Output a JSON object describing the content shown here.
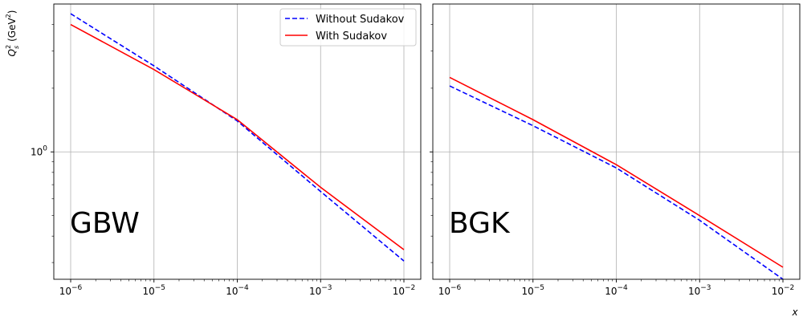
{
  "chart_data": [
    {
      "type": "line",
      "panel_label": "GBW",
      "xscale": "log",
      "yscale": "log",
      "xlim": [
        1e-06,
        0.01
      ],
      "ylim": [
        0.25,
        5.0
      ],
      "grid": true,
      "legend": "top-right",
      "ylabel": "Q_s^2 (GeV^2)",
      "xlabel": "",
      "x_ticks": [
        1e-06,
        1e-05,
        0.0001,
        0.001,
        0.01
      ],
      "y_ticks": [
        1.0
      ],
      "series": [
        {
          "name": "Without Sudakov",
          "color": "#0000ff",
          "dash": true,
          "x": [
            1e-06,
            1e-05,
            0.0001,
            0.001,
            0.01
          ],
          "y": [
            4.5,
            2.55,
            1.4,
            0.65,
            0.305
          ]
        },
        {
          "name": "With Sudakov",
          "color": "#ff0000",
          "dash": false,
          "x": [
            1e-06,
            1e-05,
            0.0001,
            0.001,
            0.01
          ],
          "y": [
            4.0,
            2.45,
            1.42,
            0.68,
            0.345
          ]
        }
      ]
    },
    {
      "type": "line",
      "panel_label": "BGK",
      "xscale": "log",
      "yscale": "log",
      "xlim": [
        1e-06,
        0.01
      ],
      "ylim": [
        0.25,
        5.0
      ],
      "grid": true,
      "legend": "none",
      "ylabel": "",
      "xlabel": "x",
      "x_ticks": [
        1e-06,
        1e-05,
        0.0001,
        0.001,
        0.01
      ],
      "y_ticks": [
        1.0
      ],
      "series": [
        {
          "name": "Without Sudakov",
          "color": "#0000ff",
          "dash": true,
          "x": [
            1e-06,
            1e-05,
            0.0001,
            0.001,
            0.01
          ],
          "y": [
            2.05,
            1.33,
            0.84,
            0.475,
            0.25
          ]
        },
        {
          "name": "With Sudakov",
          "color": "#ff0000",
          "dash": false,
          "x": [
            1e-06,
            1e-05,
            0.0001,
            0.001,
            0.01
          ],
          "y": [
            2.25,
            1.42,
            0.87,
            0.5,
            0.285
          ]
        }
      ]
    }
  ]
}
